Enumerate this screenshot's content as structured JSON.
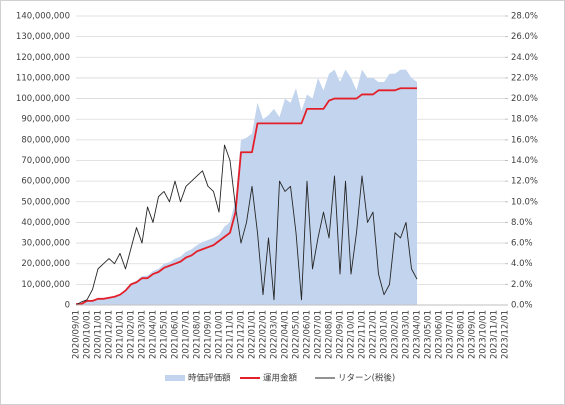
{
  "chart_data": {
    "type": "line",
    "categories": [
      "2020/09/01",
      null,
      "2020/10/01",
      null,
      "2020/11/01",
      null,
      "2020/12/01",
      null,
      "2021/01/01",
      null,
      "2021/02/01",
      null,
      "2021/03/01",
      null,
      "2021/04/01",
      null,
      "2021/05/01",
      null,
      "2021/06/01",
      null,
      "2021/07/01",
      null,
      "2021/08/01",
      null,
      "2021/09/01",
      null,
      "2021/10/01",
      null,
      "2021/11/01",
      null,
      "2021/12/01",
      null,
      "2022/01/01",
      null,
      "2022/02/01",
      null,
      "2022/03/01",
      null,
      "2022/04/01",
      null,
      "2022/05/01",
      null,
      "2022/06/01",
      null,
      "2022/07/01",
      null,
      "2022/08/01",
      null,
      "2022/09/01",
      null,
      "2022/10/01",
      null,
      "2022/11/01",
      null,
      "2022/12/01",
      null,
      "2023/01/01",
      null,
      "2023/02/01",
      null,
      "2023/03/01",
      null,
      "2023/04/01",
      null,
      "2023/05/01",
      null,
      "2023/06/01",
      null,
      "2023/07/01",
      null,
      "2023/08/01",
      null,
      "2023/09/01",
      null,
      "2023/10/01",
      null,
      "2023/11/01",
      null,
      "2023/12/01"
    ],
    "series": [
      {
        "name": "時価評価額",
        "type": "area",
        "color": "#c3d5ee",
        "values": [
          500000,
          600000,
          2000000,
          2100000,
          3100000,
          3200000,
          3800000,
          4300000,
          5400000,
          7600000,
          10600000,
          11800000,
          14000000,
          14200000,
          16500000,
          17500000,
          20000000,
          20800000,
          22400000,
          23500000,
          25800000,
          27000000,
          29000000,
          30500000,
          31500000,
          32500000,
          34000000,
          38000000,
          40000000,
          51000000,
          80000000,
          81000000,
          83000000,
          98000000,
          90000000,
          92000000,
          95000000,
          91000000,
          100000000,
          98000000,
          105000000,
          94000000,
          102000000,
          100000000,
          110000000,
          104000000,
          112000000,
          114000000,
          108000000,
          114000000,
          110000000,
          104000000,
          114000000,
          110000000,
          110000000,
          108000000,
          108000000,
          112000000,
          112000000,
          114000000,
          114000000,
          110000000,
          108000000,
          null,
          null,
          null,
          null,
          null,
          null,
          null,
          null,
          null,
          null,
          null,
          null,
          null,
          null,
          null,
          null
        ]
      },
      {
        "name": "運用金額",
        "type": "line",
        "color": "#e3202a",
        "values": [
          500000,
          500000,
          2000000,
          2000000,
          3000000,
          3000000,
          3500000,
          4000000,
          5000000,
          7000000,
          10000000,
          11000000,
          13000000,
          13000000,
          15000000,
          16000000,
          18000000,
          19000000,
          20000000,
          21000000,
          23000000,
          24000000,
          26000000,
          27000000,
          28000000,
          29000000,
          31000000,
          33000000,
          35000000,
          45000000,
          74000000,
          74000000,
          74000000,
          88000000,
          88000000,
          88000000,
          88000000,
          88000000,
          88000000,
          88000000,
          88000000,
          88000000,
          95000000,
          95000000,
          95000000,
          95000000,
          99000000,
          100000000,
          100000000,
          100000000,
          100000000,
          100000000,
          102000000,
          102000000,
          102000000,
          104000000,
          104000000,
          104000000,
          104000000,
          105000000,
          105000000,
          105000000,
          105000000,
          null,
          null,
          null,
          null,
          null,
          null,
          null,
          null,
          null,
          null,
          null,
          null,
          null,
          null,
          null,
          null
        ]
      },
      {
        "name": "リターン(税後)",
        "type": "line",
        "axis": "y2",
        "color": "#262626",
        "values": [
          0,
          0.3,
          0.5,
          1.5,
          3.5,
          4,
          4.5,
          4,
          5,
          3.5,
          5.5,
          7.5,
          6,
          9.5,
          8,
          10.5,
          11,
          10,
          12,
          10,
          11.5,
          12,
          12.5,
          13,
          11.5,
          11,
          9,
          15.5,
          14,
          9.5,
          6,
          8,
          11.5,
          7,
          1,
          6.5,
          0.5,
          12,
          11,
          11.5,
          7,
          0.5,
          12,
          3.5,
          6.5,
          9,
          6.5,
          12.5,
          3,
          12,
          3,
          7,
          12.5,
          8,
          9,
          3,
          1,
          2,
          7,
          6.5,
          8,
          3.5,
          2.5,
          null,
          null,
          null,
          null,
          null,
          null,
          null,
          null,
          null,
          null,
          null,
          null,
          null,
          null,
          null,
          null
        ]
      }
    ],
    "ylim": [
      0,
      140000000
    ],
    "yticks": [
      0,
      {
        "value": 10000000,
        "label": "10,000,000"
      },
      {
        "value": 20000000,
        "label": "20,000,000"
      },
      {
        "value": 30000000,
        "label": "30,000,000"
      },
      {
        "value": 40000000,
        "label": "40,000,000"
      },
      {
        "value": 50000000,
        "label": "50,000,000"
      },
      {
        "value": 60000000,
        "label": "60,000,000"
      },
      {
        "value": 70000000,
        "label": "70,000,000"
      },
      {
        "value": 80000000,
        "label": "80,000,000"
      },
      {
        "value": 90000000,
        "label": "90,000,000"
      },
      {
        "value": 100000000,
        "label": "100,000,000"
      },
      {
        "value": 110000000,
        "label": "110,000,000"
      },
      {
        "value": 120000000,
        "label": "120,000,000"
      },
      {
        "value": 130000000,
        "label": "130,000,000"
      },
      {
        "value": 140000000,
        "label": "140,000,000"
      }
    ],
    "y2lim": [
      0,
      28
    ],
    "y2ticks": [
      {
        "value": 0,
        "label": "0.0%"
      },
      {
        "value": 2,
        "label": "2.0%"
      },
      {
        "value": 4,
        "label": "4.0%"
      },
      {
        "value": 6,
        "label": "6.0%"
      },
      {
        "value": 8,
        "label": "8.0%"
      },
      {
        "value": 10,
        "label": "10.0%"
      },
      {
        "value": 12,
        "label": "12.0%"
      },
      {
        "value": 14,
        "label": "14.0%"
      },
      {
        "value": 16,
        "label": "16.0%"
      },
      {
        "value": 18,
        "label": "18.0%"
      },
      {
        "value": 20,
        "label": "20.0%"
      },
      {
        "value": 22,
        "label": "22.0%"
      },
      {
        "value": 24,
        "label": "24.0%"
      },
      {
        "value": 26,
        "label": "26.0%"
      },
      {
        "value": 28,
        "label": "28.0%"
      }
    ],
    "grid": true,
    "legend": "bottom"
  }
}
